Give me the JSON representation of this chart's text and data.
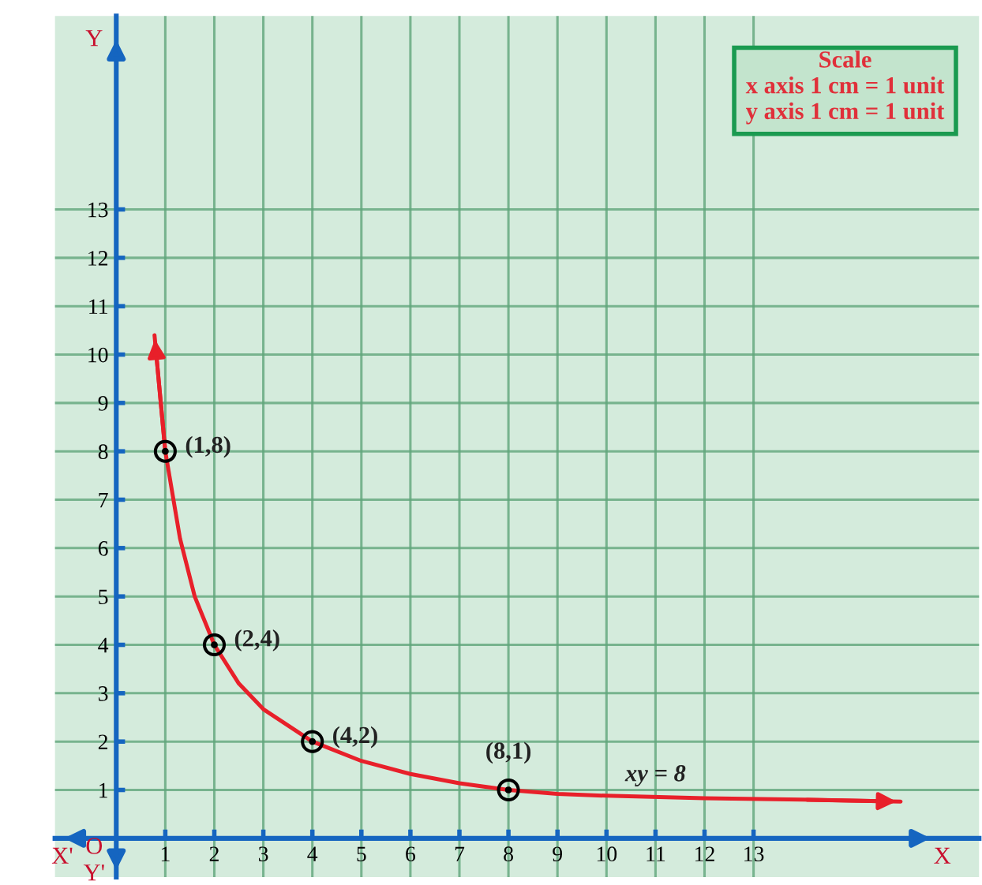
{
  "chart_data": {
    "type": "line",
    "xlim": [
      -1.25,
      17.6
    ],
    "ylim": [
      -0.8,
      17
    ],
    "xticks": [
      1,
      2,
      3,
      4,
      5,
      6,
      7,
      8,
      9,
      10,
      11,
      12,
      13
    ],
    "yticks": [
      1,
      2,
      3,
      4,
      5,
      6,
      7,
      8,
      9,
      10,
      11,
      12,
      13
    ],
    "xlabel": "X",
    "ylabel": "Y",
    "grid": true,
    "series": [
      {
        "color": "#e8202a",
        "x": [
          0.78,
          1,
          1.3,
          1.6,
          2,
          2.5,
          3,
          4,
          5,
          6,
          7,
          8,
          9,
          10,
          12,
          14,
          16
        ],
        "values": [
          10.4,
          8,
          6.2,
          5,
          4,
          3.2,
          2.67,
          2,
          1.6,
          1.33,
          1.14,
          1,
          0.92,
          0.88,
          0.83,
          0.8,
          0.76
        ]
      },
      {
        "type": "scatter",
        "color": "#000000",
        "marker": "circle",
        "x": [
          1,
          2,
          4,
          8
        ],
        "values": [
          8,
          4,
          2,
          1
        ]
      }
    ],
    "annotations": [
      {
        "text": "(1,8)",
        "x": 1,
        "y": 8
      },
      {
        "text": "(2,4)",
        "x": 2,
        "y": 4
      },
      {
        "text": "(4,2)",
        "x": 4,
        "y": 2
      },
      {
        "text": "(8,1)",
        "x": 8,
        "y": 1
      },
      "xy = 8",
      "X'",
      "Y'",
      "O",
      "Scale",
      "x axis 1 cm = 1 unit",
      "y axis 1 cm = 1 unit"
    ]
  }
}
